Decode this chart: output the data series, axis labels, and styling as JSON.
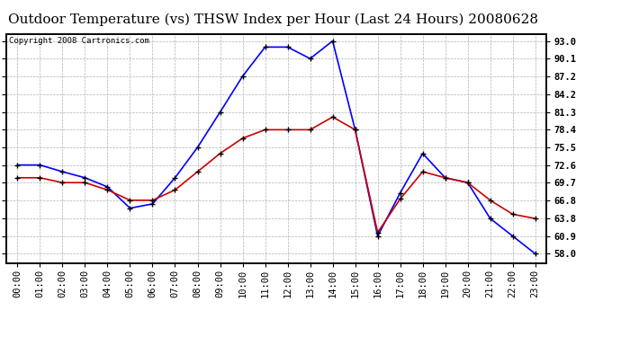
{
  "title": "Outdoor Temperature (vs) THSW Index per Hour (Last 24 Hours) 20080628",
  "copyright": "Copyright 2008 Cartronics.com",
  "hours": [
    "00:00",
    "01:00",
    "02:00",
    "03:00",
    "04:00",
    "05:00",
    "06:00",
    "07:00",
    "08:00",
    "09:00",
    "10:00",
    "11:00",
    "12:00",
    "13:00",
    "14:00",
    "15:00",
    "16:00",
    "17:00",
    "18:00",
    "19:00",
    "20:00",
    "21:00",
    "22:00",
    "23:00"
  ],
  "blue_data": [
    72.6,
    72.6,
    71.5,
    70.5,
    69.0,
    65.5,
    66.2,
    70.5,
    75.5,
    81.3,
    87.2,
    92.0,
    92.0,
    90.1,
    93.0,
    78.4,
    60.9,
    68.0,
    74.5,
    70.5,
    69.7,
    63.8,
    60.9,
    58.0
  ],
  "red_data": [
    70.5,
    70.5,
    69.7,
    69.7,
    68.5,
    66.8,
    66.8,
    68.5,
    71.5,
    74.5,
    77.0,
    78.4,
    78.4,
    78.4,
    80.5,
    78.4,
    61.5,
    67.0,
    71.5,
    70.5,
    69.7,
    66.8,
    64.5,
    63.8
  ],
  "blue_color": "#0000ff",
  "red_color": "#cc0000",
  "marker_color": "#000000",
  "bg_color": "#ffffff",
  "grid_color": "#b0b0b0",
  "yticks": [
    58.0,
    60.9,
    63.8,
    66.8,
    69.7,
    72.6,
    75.5,
    78.4,
    81.3,
    84.2,
    87.2,
    90.1,
    93.0
  ],
  "ymin": 56.5,
  "ymax": 94.2,
  "title_fontsize": 11,
  "copyright_fontsize": 6.5,
  "tick_fontsize": 7.5
}
